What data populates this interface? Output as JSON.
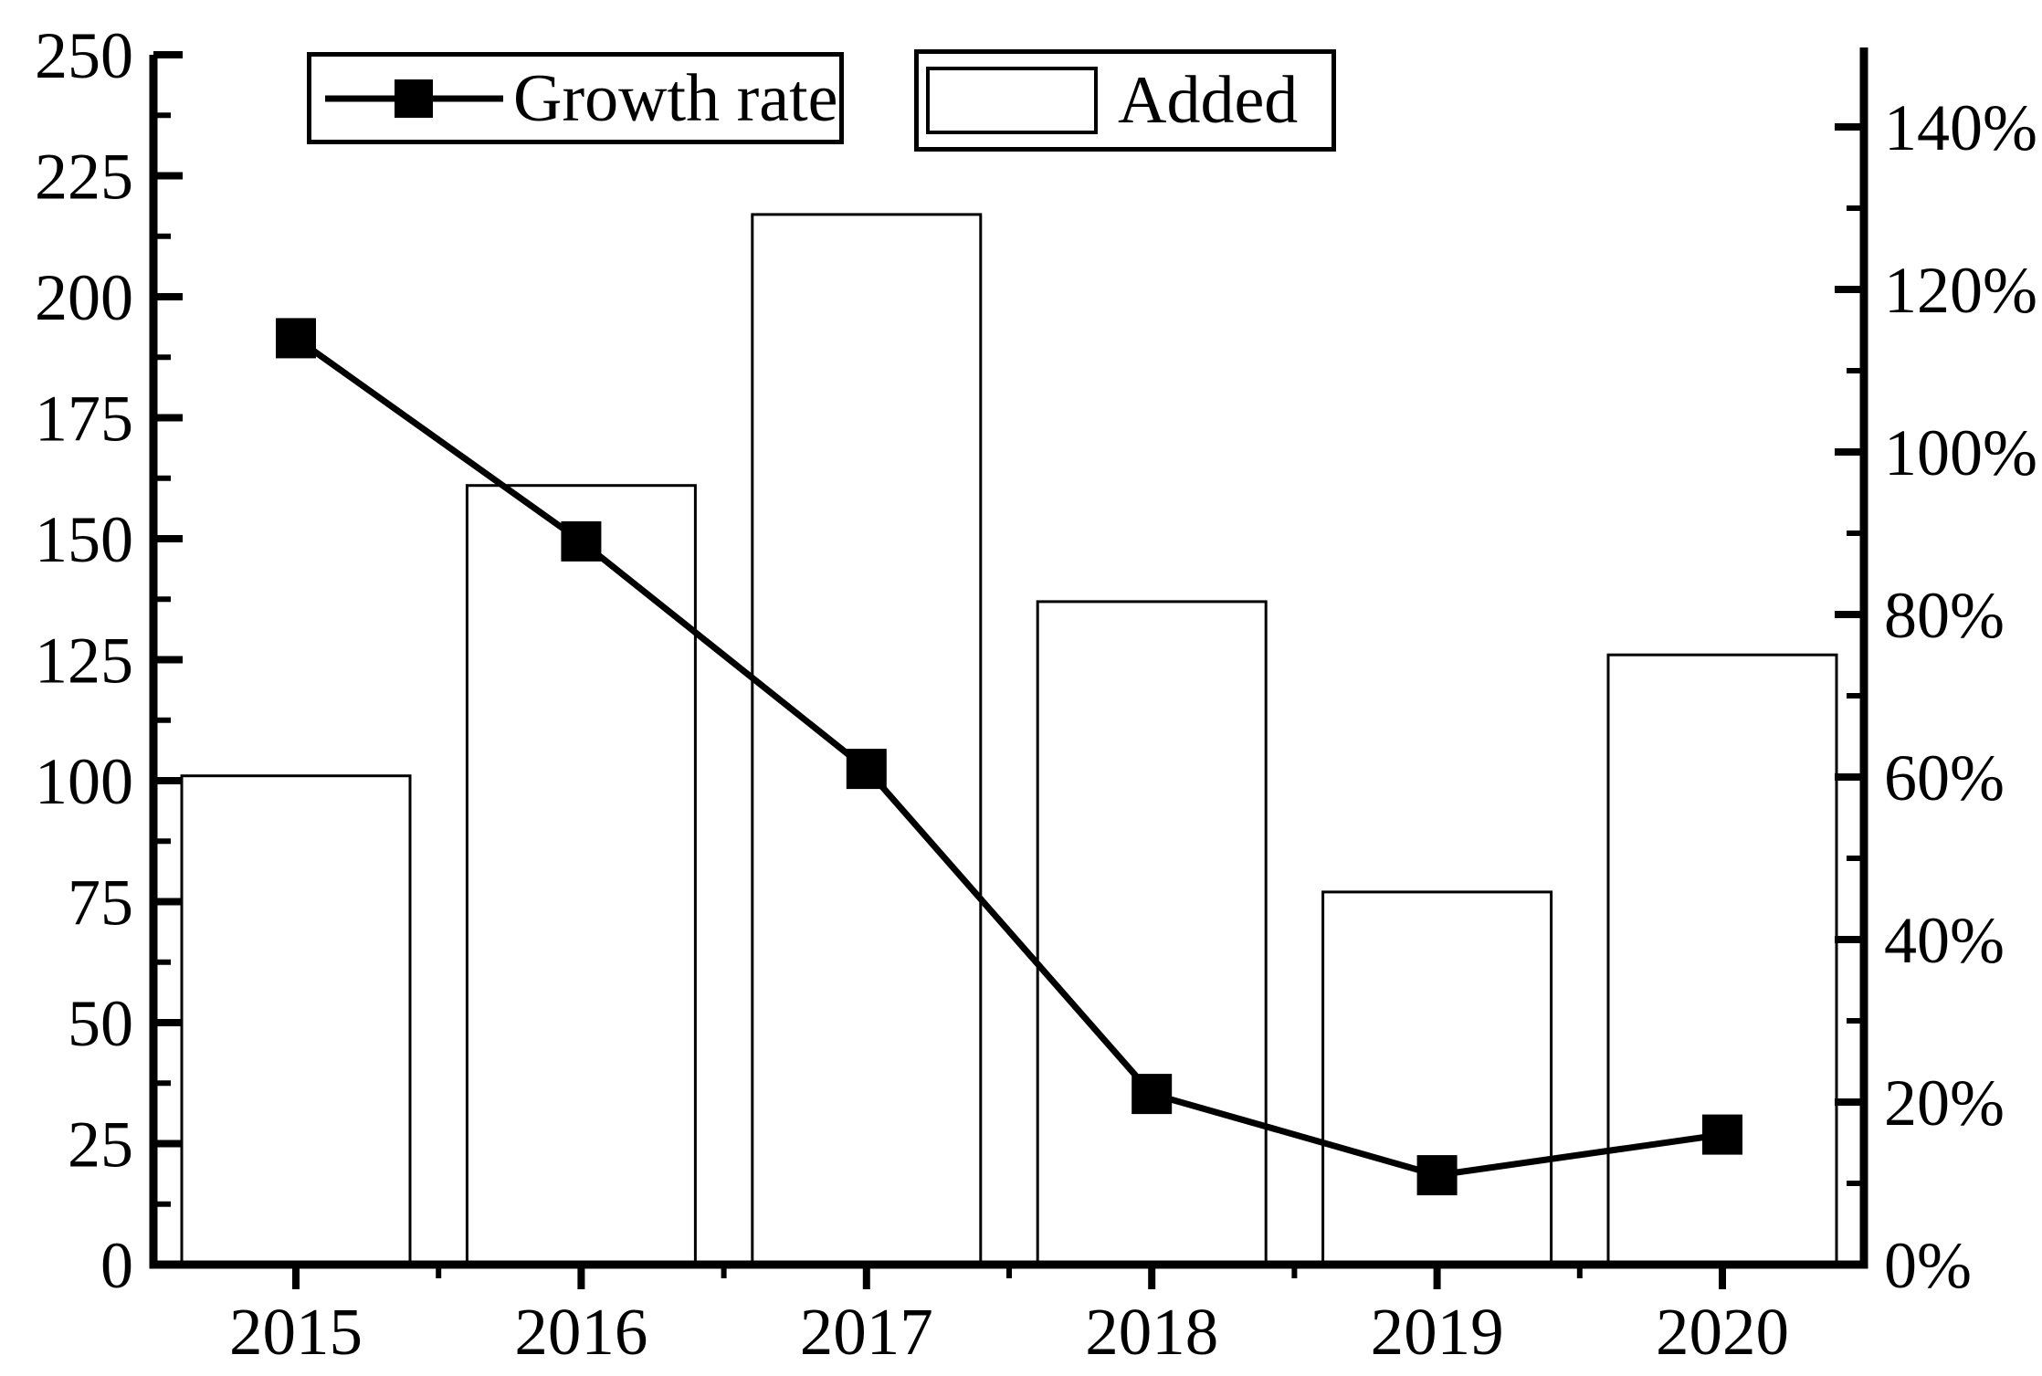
{
  "figure": {
    "background": "#ffffff",
    "ink": "#000000",
    "bar_fill": "#ffffff",
    "bar_stroke": "#000000",
    "line_color": "#000000"
  },
  "legend": [
    {
      "label": "Growth rate",
      "marker": "line-with-filled-square"
    },
    {
      "label": "Added",
      "marker": "open-rectangle"
    }
  ],
  "chart_data": {
    "type": "combo-bar-line",
    "categories": [
      "2015",
      "2016",
      "2017",
      "2018",
      "2019",
      "2020"
    ],
    "series": [
      {
        "name": "Added",
        "type": "bar",
        "axis": "left",
        "values": [
          101,
          161,
          217,
          137,
          77,
          126
        ]
      },
      {
        "name": "Growth rate",
        "type": "line",
        "axis": "right",
        "values_pct": [
          114,
          89,
          61,
          21,
          11,
          16
        ]
      }
    ],
    "left_axis": {
      "min": 0,
      "max": 250,
      "major_step": 25,
      "minor_step": 12.5,
      "tick_labels": [
        "0",
        "25",
        "50",
        "75",
        "100",
        "125",
        "150",
        "175",
        "200",
        "225",
        "250"
      ]
    },
    "right_axis": {
      "min": 0,
      "max": 140,
      "major_step": 20,
      "minor_step": 10,
      "tick_labels": [
        "0%",
        "20%",
        "40%",
        "60%",
        "80%",
        "100%",
        "120%",
        "140%"
      ]
    },
    "x_axis": {
      "tick_labels": [
        "2015",
        "2016",
        "2017",
        "2018",
        "2019",
        "2020"
      ]
    },
    "grid": false,
    "legend_position": "top"
  }
}
